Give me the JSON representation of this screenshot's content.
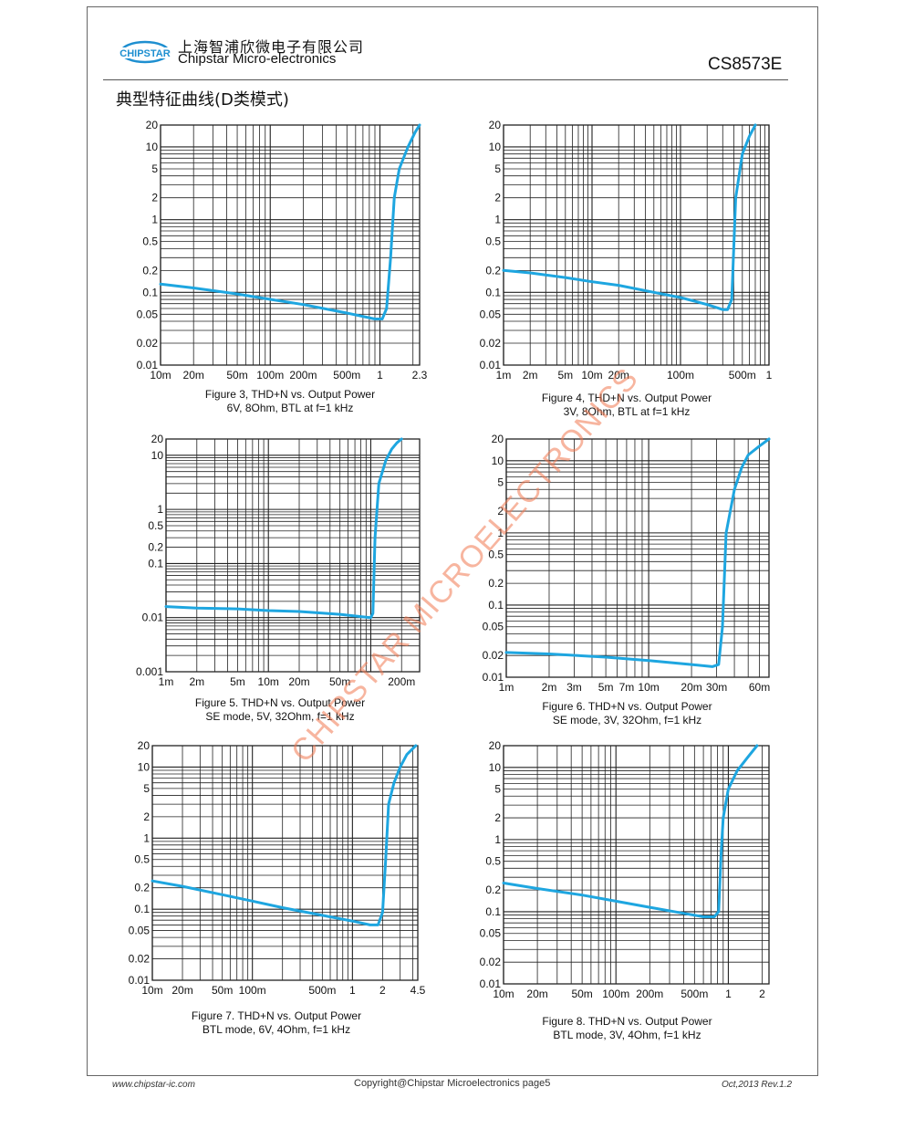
{
  "header": {
    "logo_text": "CHIPSTAR",
    "company_cn": "上海智浦欣微电子有限公司",
    "company_en": "Chipstar Micro-electronics",
    "part_number": "CS8573E"
  },
  "section_title": "典型特征曲线(D类模式)",
  "colors": {
    "curve": "#1ea6e0",
    "grid": "#222222",
    "watermark": "#f07850",
    "logo_blue": "#1e8fd0"
  },
  "watermark": "CHIPSTAR MICROELECTRONICS",
  "chart_data": [
    {
      "id": "fig3",
      "type": "line",
      "caption_line1": "Figure 3,  THD+N vs. Output Power",
      "caption_line2": "6V, 8Ohm, BTL at f=1 kHz",
      "xlim": [
        0.01,
        2.3
      ],
      "ylim": [
        0.01,
        20
      ],
      "xscale": "log",
      "yscale": "log",
      "xticks": [
        {
          "v": 0.01,
          "t": "10m"
        },
        {
          "v": 0.02,
          "t": "20m"
        },
        {
          "v": 0.05,
          "t": "50m"
        },
        {
          "v": 0.1,
          "t": "100m"
        },
        {
          "v": 0.2,
          "t": "200m"
        },
        {
          "v": 0.5,
          "t": "500m"
        },
        {
          "v": 1,
          "t": "1"
        },
        {
          "v": 2.3,
          "t": "2.3"
        }
      ],
      "yticks": [
        {
          "v": 0.01,
          "t": "0.01"
        },
        {
          "v": 0.02,
          "t": "0.02"
        },
        {
          "v": 0.05,
          "t": "0.05"
        },
        {
          "v": 0.1,
          "t": "0.1"
        },
        {
          "v": 0.2,
          "t": "0.2"
        },
        {
          "v": 0.5,
          "t": "0.5"
        },
        {
          "v": 1,
          "t": "1"
        },
        {
          "v": 2,
          "t": "2"
        },
        {
          "v": 5,
          "t": "5"
        },
        {
          "v": 10,
          "t": "10"
        },
        {
          "v": 20,
          "t": "20"
        }
      ],
      "series": [
        {
          "x": [
            0.01,
            0.02,
            0.05,
            0.1,
            0.2,
            0.5,
            0.9,
            1.05,
            1.15,
            1.25,
            1.35,
            1.5,
            1.8,
            2.1,
            2.3
          ],
          "y": [
            0.13,
            0.115,
            0.095,
            0.08,
            0.068,
            0.052,
            0.043,
            0.043,
            0.06,
            0.3,
            2,
            5,
            10,
            16,
            20
          ]
        }
      ]
    },
    {
      "id": "fig4",
      "type": "line",
      "caption_line1": "Figure 4,   THD+N vs. Output Power",
      "caption_line2": "3V, 8Ohm, BTL at f=1 kHz",
      "xlim": [
        0.001,
        1
      ],
      "ylim": [
        0.01,
        20
      ],
      "xscale": "log",
      "yscale": "log",
      "xticks": [
        {
          "v": 0.001,
          "t": "1m"
        },
        {
          "v": 0.002,
          "t": "2m"
        },
        {
          "v": 0.005,
          "t": "5m"
        },
        {
          "v": 0.01,
          "t": "10m"
        },
        {
          "v": 0.02,
          "t": "20m"
        },
        {
          "v": 0.1,
          "t": "100m"
        },
        {
          "v": 0.5,
          "t": "500m"
        },
        {
          "v": 1,
          "t": "1"
        }
      ],
      "yticks": [
        {
          "v": 0.01,
          "t": "0.01"
        },
        {
          "v": 0.02,
          "t": "0.02"
        },
        {
          "v": 0.05,
          "t": "0.05"
        },
        {
          "v": 0.1,
          "t": "0.1"
        },
        {
          "v": 0.2,
          "t": "0.2"
        },
        {
          "v": 0.5,
          "t": "0.5"
        },
        {
          "v": 1,
          "t": "1"
        },
        {
          "v": 2,
          "t": "2"
        },
        {
          "v": 5,
          "t": "5"
        },
        {
          "v": 10,
          "t": "10"
        },
        {
          "v": 20,
          "t": "20"
        }
      ],
      "series": [
        {
          "x": [
            0.001,
            0.002,
            0.005,
            0.01,
            0.02,
            0.05,
            0.1,
            0.2,
            0.3,
            0.34,
            0.38,
            0.42,
            0.5,
            0.6,
            0.7
          ],
          "y": [
            0.2,
            0.185,
            0.16,
            0.14,
            0.125,
            0.1,
            0.085,
            0.068,
            0.058,
            0.058,
            0.08,
            2,
            8,
            14,
            20
          ]
        }
      ]
    },
    {
      "id": "fig5",
      "type": "line",
      "caption_line1": "Figure 5.    THD+N vs. Output Power",
      "caption_line2": "SE mode, 5V, 32Ohm, f=1 kHz",
      "xlim": [
        0.001,
        0.3
      ],
      "ylim": [
        0.001,
        20
      ],
      "xscale": "log",
      "yscale": "log",
      "xticks": [
        {
          "v": 0.001,
          "t": "1m"
        },
        {
          "v": 0.002,
          "t": "2m"
        },
        {
          "v": 0.005,
          "t": "5m"
        },
        {
          "v": 0.01,
          "t": "10m"
        },
        {
          "v": 0.02,
          "t": "20m"
        },
        {
          "v": 0.05,
          "t": "50m"
        },
        {
          "v": 0.2,
          "t": "200m"
        }
      ],
      "yticks": [
        {
          "v": 0.001,
          "t": "0.001"
        },
        {
          "v": 0.01,
          "t": "0.01"
        },
        {
          "v": 0.1,
          "t": "0.1"
        },
        {
          "v": 0.2,
          "t": "0.2"
        },
        {
          "v": 0.5,
          "t": "0.5"
        },
        {
          "v": 1,
          "t": "1"
        },
        {
          "v": 10,
          "t": "10"
        },
        {
          "v": 20,
          "t": "20"
        }
      ],
      "series": [
        {
          "x": [
            0.001,
            0.002,
            0.005,
            0.01,
            0.02,
            0.05,
            0.09,
            0.1,
            0.105,
            0.11,
            0.12,
            0.14,
            0.16,
            0.18,
            0.2
          ],
          "y": [
            0.016,
            0.015,
            0.0145,
            0.0135,
            0.013,
            0.0115,
            0.0102,
            0.01,
            0.012,
            0.3,
            3,
            8,
            13,
            17,
            20
          ]
        }
      ]
    },
    {
      "id": "fig6",
      "type": "line",
      "caption_line1": "Figure 6.    THD+N vs. Output Power",
      "caption_line2": "SE mode, 3V, 32Ohm, f=1 kHz",
      "xlim": [
        0.001,
        0.07
      ],
      "ylim": [
        0.01,
        20
      ],
      "xscale": "log",
      "yscale": "log",
      "xticks": [
        {
          "v": 0.001,
          "t": "1m"
        },
        {
          "v": 0.002,
          "t": "2m"
        },
        {
          "v": 0.003,
          "t": "3m"
        },
        {
          "v": 0.005,
          "t": "5m"
        },
        {
          "v": 0.007,
          "t": "7m"
        },
        {
          "v": 0.01,
          "t": "10m"
        },
        {
          "v": 0.02,
          "t": "20m"
        },
        {
          "v": 0.03,
          "t": "30m"
        },
        {
          "v": 0.06,
          "t": "60m"
        }
      ],
      "yticks": [
        {
          "v": 0.01,
          "t": "0.01"
        },
        {
          "v": 0.02,
          "t": "0.02"
        },
        {
          "v": 0.05,
          "t": "0.05"
        },
        {
          "v": 0.1,
          "t": "0.1"
        },
        {
          "v": 0.2,
          "t": "0.2"
        },
        {
          "v": 0.5,
          "t": "0.5"
        },
        {
          "v": 1,
          "t": "1"
        },
        {
          "v": 2,
          "t": "2"
        },
        {
          "v": 5,
          "t": "5"
        },
        {
          "v": 10,
          "t": "10"
        },
        {
          "v": 20,
          "t": "20"
        }
      ],
      "series": [
        {
          "x": [
            0.001,
            0.002,
            0.005,
            0.01,
            0.02,
            0.028,
            0.031,
            0.033,
            0.035,
            0.04,
            0.045,
            0.05,
            0.06,
            0.07
          ],
          "y": [
            0.022,
            0.021,
            0.019,
            0.017,
            0.015,
            0.014,
            0.015,
            0.05,
            1,
            4,
            8,
            12,
            16,
            20
          ]
        }
      ]
    },
    {
      "id": "fig7",
      "type": "line",
      "caption_line1": "Figure 7.    THD+N vs. Output Power",
      "caption_line2": "BTL mode, 6V, 4Ohm, f=1 kHz",
      "xlim": [
        0.01,
        4.5
      ],
      "ylim": [
        0.01,
        20
      ],
      "xscale": "log",
      "yscale": "log",
      "xticks": [
        {
          "v": 0.01,
          "t": "10m"
        },
        {
          "v": 0.02,
          "t": "20m"
        },
        {
          "v": 0.05,
          "t": "50m"
        },
        {
          "v": 0.1,
          "t": "100m"
        },
        {
          "v": 0.5,
          "t": "500m"
        },
        {
          "v": 1,
          "t": "1"
        },
        {
          "v": 2,
          "t": "2"
        },
        {
          "v": 4.5,
          "t": "4.5"
        }
      ],
      "yticks": [
        {
          "v": 0.01,
          "t": "0.01"
        },
        {
          "v": 0.02,
          "t": "0.02"
        },
        {
          "v": 0.05,
          "t": "0.05"
        },
        {
          "v": 0.1,
          "t": "0.1"
        },
        {
          "v": 0.2,
          "t": "0.2"
        },
        {
          "v": 0.5,
          "t": "0.5"
        },
        {
          "v": 1,
          "t": "1"
        },
        {
          "v": 2,
          "t": "2"
        },
        {
          "v": 5,
          "t": "5"
        },
        {
          "v": 10,
          "t": "10"
        },
        {
          "v": 20,
          "t": "20"
        }
      ],
      "series": [
        {
          "x": [
            0.01,
            0.02,
            0.05,
            0.1,
            0.2,
            0.5,
            1,
            1.5,
            1.8,
            2,
            2.15,
            2.3,
            2.6,
            3,
            3.5,
            4.3
          ],
          "y": [
            0.25,
            0.21,
            0.16,
            0.13,
            0.105,
            0.082,
            0.068,
            0.06,
            0.06,
            0.09,
            0.5,
            3,
            6,
            10,
            15,
            20
          ]
        }
      ]
    },
    {
      "id": "fig8",
      "type": "line",
      "caption_line1": "Figure 8.    THD+N vs. Output Power",
      "caption_line2": "BTL mode, 3V, 4Ohm, f=1 kHz",
      "xlim": [
        0.01,
        2.3
      ],
      "ylim": [
        0.01,
        20
      ],
      "xscale": "log",
      "yscale": "log",
      "xticks": [
        {
          "v": 0.01,
          "t": "10m"
        },
        {
          "v": 0.02,
          "t": "20m"
        },
        {
          "v": 0.05,
          "t": "50m"
        },
        {
          "v": 0.1,
          "t": "100m"
        },
        {
          "v": 0.2,
          "t": "200m"
        },
        {
          "v": 0.5,
          "t": "500m"
        },
        {
          "v": 1,
          "t": "1"
        },
        {
          "v": 2,
          "t": "2"
        }
      ],
      "yticks": [
        {
          "v": 0.01,
          "t": "0.01"
        },
        {
          "v": 0.02,
          "t": "0.02"
        },
        {
          "v": 0.05,
          "t": "0.05"
        },
        {
          "v": 0.1,
          "t": "0.1"
        },
        {
          "v": 0.2,
          "t": "0.2"
        },
        {
          "v": 0.5,
          "t": "0.5"
        },
        {
          "v": 1,
          "t": "1"
        },
        {
          "v": 2,
          "t": "2"
        },
        {
          "v": 5,
          "t": "5"
        },
        {
          "v": 10,
          "t": "10"
        },
        {
          "v": 20,
          "t": "20"
        }
      ],
      "series": [
        {
          "x": [
            0.01,
            0.02,
            0.05,
            0.1,
            0.2,
            0.4,
            0.6,
            0.75,
            0.82,
            0.86,
            0.9,
            1,
            1.2,
            1.5,
            1.8
          ],
          "y": [
            0.25,
            0.21,
            0.17,
            0.14,
            0.115,
            0.095,
            0.085,
            0.085,
            0.1,
            0.6,
            2,
            5,
            9,
            14,
            20
          ]
        }
      ]
    }
  ],
  "footer": {
    "url": "www.chipstar-ic.com",
    "copyright": "Copyright@Chipstar Microelectronics    page5",
    "revision": "Oct,2013  Rev.1.2"
  }
}
